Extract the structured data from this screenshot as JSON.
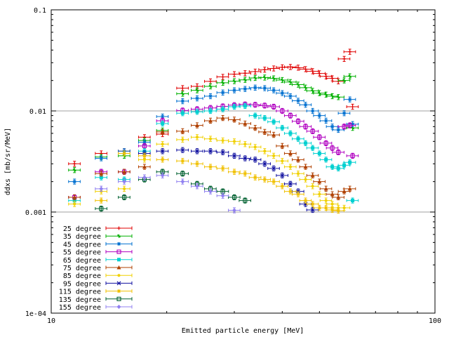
{
  "chart_data": {
    "type": "scatter",
    "title": "",
    "xlabel": "Emitted particle energy [MeV]",
    "ylabel": "ddxs [mb/sr/MeV]",
    "xscale": "log",
    "yscale": "log",
    "xlim": [
      10,
      100
    ],
    "ylim": [
      0.0001,
      0.1
    ],
    "x_ticks": [
      {
        "value": 10,
        "label": "10"
      },
      {
        "value": 100,
        "label": "100"
      }
    ],
    "y_ticks": [
      {
        "value": 0.1,
        "label": "0.1"
      },
      {
        "value": 0.01,
        "label": "0.01"
      },
      {
        "value": 0.001,
        "label": "0.001"
      },
      {
        "value": 0.0001,
        "label": "1e-04"
      }
    ],
    "grid": "horizontal",
    "legend_position": "bottom-left",
    "series": [
      {
        "name": "25 degree",
        "color": "#e00000",
        "marker": "plus",
        "points": [
          [
            11.5,
            0.003
          ],
          [
            13.5,
            0.0038
          ],
          [
            15.5,
            0.004
          ],
          [
            17.5,
            0.0055
          ],
          [
            19.5,
            0.0059
          ],
          [
            22,
            0.0168
          ],
          [
            24,
            0.0175
          ],
          [
            26,
            0.0196
          ],
          [
            28,
            0.0217
          ],
          [
            30,
            0.0231
          ],
          [
            32,
            0.0236
          ],
          [
            34,
            0.0245
          ],
          [
            36,
            0.0256
          ],
          [
            38,
            0.0263
          ],
          [
            40,
            0.027
          ],
          [
            42,
            0.0272
          ],
          [
            44,
            0.0268
          ],
          [
            46,
            0.0259
          ],
          [
            48,
            0.0247
          ],
          [
            50,
            0.0235
          ],
          [
            52,
            0.022
          ],
          [
            54,
            0.021
          ],
          [
            56,
            0.0196
          ],
          [
            58,
            0.0327
          ],
          [
            60,
            0.0385
          ],
          [
            61,
            0.011
          ]
        ]
      },
      {
        "name": "35 degree",
        "color": "#00b000",
        "marker": "cross",
        "points": [
          [
            11.5,
            0.0026
          ],
          [
            13.5,
            0.0035
          ],
          [
            15.5,
            0.0036
          ],
          [
            17.5,
            0.0051
          ],
          [
            19.5,
            0.0064
          ],
          [
            22,
            0.0148
          ],
          [
            24,
            0.016
          ],
          [
            26,
            0.0175
          ],
          [
            28,
            0.019
          ],
          [
            30,
            0.0197
          ],
          [
            32,
            0.0203
          ],
          [
            34,
            0.0212
          ],
          [
            36,
            0.0214
          ],
          [
            38,
            0.021
          ],
          [
            40,
            0.0202
          ],
          [
            42,
            0.0193
          ],
          [
            44,
            0.0182
          ],
          [
            46,
            0.017
          ],
          [
            48,
            0.0158
          ],
          [
            50,
            0.015
          ],
          [
            52,
            0.0145
          ],
          [
            54,
            0.014
          ],
          [
            56,
            0.0137
          ],
          [
            58,
            0.02
          ],
          [
            60,
            0.022
          ],
          [
            61,
            0.0068
          ]
        ]
      },
      {
        "name": "45 degree",
        "color": "#0070d0",
        "marker": "star",
        "points": [
          [
            11.5,
            0.002
          ],
          [
            13.5,
            0.0034
          ],
          [
            15.5,
            0.004
          ],
          [
            17.5,
            0.0049
          ],
          [
            19.5,
            0.0088
          ],
          [
            22,
            0.0125
          ],
          [
            24,
            0.0133
          ],
          [
            26,
            0.014
          ],
          [
            28,
            0.0152
          ],
          [
            30,
            0.016
          ],
          [
            32,
            0.0165
          ],
          [
            34,
            0.017
          ],
          [
            36,
            0.0168
          ],
          [
            38,
            0.016
          ],
          [
            40,
            0.015
          ],
          [
            42,
            0.014
          ],
          [
            44,
            0.0126
          ],
          [
            46,
            0.0115
          ],
          [
            48,
            0.01
          ],
          [
            50,
            0.009
          ],
          [
            52,
            0.008
          ],
          [
            54,
            0.007
          ],
          [
            56,
            0.0065
          ],
          [
            58,
            0.0095
          ],
          [
            60,
            0.013
          ],
          [
            61,
            0.0074
          ]
        ]
      },
      {
        "name": "55 degree",
        "color": "#b000c0",
        "marker": "square",
        "points": [
          [
            11.5,
            0.0014
          ],
          [
            13.5,
            0.0025
          ],
          [
            15.5,
            0.0025
          ],
          [
            17.5,
            0.0045
          ],
          [
            19.5,
            0.008
          ],
          [
            22,
            0.0101
          ],
          [
            24,
            0.0104
          ],
          [
            26,
            0.0107
          ],
          [
            28,
            0.0111
          ],
          [
            30,
            0.0114
          ],
          [
            32,
            0.0116
          ],
          [
            34,
            0.0115
          ],
          [
            36,
            0.0113
          ],
          [
            38,
            0.011
          ],
          [
            40,
            0.01
          ],
          [
            42,
            0.009
          ],
          [
            44,
            0.0079
          ],
          [
            46,
            0.007
          ],
          [
            48,
            0.0063
          ],
          [
            50,
            0.0055
          ],
          [
            52,
            0.0048
          ],
          [
            54,
            0.0043
          ],
          [
            56,
            0.0039
          ],
          [
            58,
            0.007
          ],
          [
            60,
            0.0072
          ],
          [
            61,
            0.0036
          ]
        ]
      },
      {
        "name": "65 degree",
        "color": "#00d0d0",
        "marker": "filled-square",
        "points": [
          [
            11.5,
            0.0013
          ],
          [
            13.5,
            0.0022
          ],
          [
            15.5,
            0.0021
          ],
          [
            17.5,
            0.004
          ],
          [
            19.5,
            0.0075
          ],
          [
            22,
            0.0095
          ],
          [
            24,
            0.0098
          ],
          [
            26,
            0.01
          ],
          [
            28,
            0.0104
          ],
          [
            30,
            0.011
          ],
          [
            32,
            0.0112
          ],
          [
            34,
            0.009
          ],
          [
            36,
            0.0085
          ],
          [
            38,
            0.0078
          ],
          [
            40,
            0.0068
          ],
          [
            42,
            0.006
          ],
          [
            44,
            0.0053
          ],
          [
            46,
            0.0048
          ],
          [
            48,
            0.0043
          ],
          [
            50,
            0.0038
          ],
          [
            52,
            0.0033
          ],
          [
            54,
            0.0028
          ],
          [
            56,
            0.0027
          ],
          [
            58,
            0.0029
          ],
          [
            60,
            0.0031
          ],
          [
            61,
            0.0013
          ]
        ]
      },
      {
        "name": "75 degree",
        "color": "#b04000",
        "marker": "filled-triangle",
        "points": [
          [
            11.5,
            0.0014
          ],
          [
            13.5,
            0.0024
          ],
          [
            15.5,
            0.0025
          ],
          [
            17.5,
            0.0028
          ],
          [
            19.5,
            0.0062
          ],
          [
            22,
            0.0063
          ],
          [
            24,
            0.0072
          ],
          [
            26,
            0.008
          ],
          [
            28,
            0.0085
          ],
          [
            30,
            0.0082
          ],
          [
            32,
            0.0075
          ],
          [
            34,
            0.0068
          ],
          [
            36,
            0.0062
          ],
          [
            38,
            0.0058
          ],
          [
            40,
            0.0045
          ],
          [
            42,
            0.0038
          ],
          [
            44,
            0.0033
          ],
          [
            46,
            0.0028
          ],
          [
            48,
            0.0023
          ],
          [
            50,
            0.002
          ],
          [
            52,
            0.0017
          ],
          [
            54,
            0.0015
          ],
          [
            56,
            0.0014
          ],
          [
            58,
            0.0016
          ],
          [
            60,
            0.0017
          ]
        ]
      },
      {
        "name": "85 degree",
        "color": "#f0d000",
        "marker": "dot",
        "points": [
          [
            11.5,
            0.0012
          ],
          [
            13.5,
            0.0016
          ],
          [
            15.5,
            0.0017
          ],
          [
            17.5,
            0.0033
          ],
          [
            19.5,
            0.0047
          ],
          [
            22,
            0.0052
          ],
          [
            24,
            0.0055
          ],
          [
            26,
            0.0053
          ],
          [
            28,
            0.0051
          ],
          [
            30,
            0.005
          ],
          [
            32,
            0.0047
          ],
          [
            34,
            0.0044
          ],
          [
            36,
            0.004
          ],
          [
            38,
            0.0036
          ],
          [
            40,
            0.0032
          ],
          [
            42,
            0.0028
          ],
          [
            44,
            0.0024
          ],
          [
            46,
            0.0021
          ],
          [
            48,
            0.0018
          ],
          [
            50,
            0.0015
          ],
          [
            52,
            0.0013
          ],
          [
            54,
            0.0012
          ],
          [
            56,
            0.0011
          ],
          [
            58,
            0.0011
          ]
        ]
      },
      {
        "name": "95 degree",
        "color": "#1010a0",
        "marker": "x",
        "points": [
          [
            17.5,
            0.0038
          ],
          [
            19.5,
            0.004
          ],
          [
            22,
            0.0041
          ],
          [
            24,
            0.004
          ],
          [
            26,
            0.004
          ],
          [
            28,
            0.0039
          ],
          [
            30,
            0.0036
          ],
          [
            32,
            0.0034
          ],
          [
            34,
            0.0033
          ],
          [
            36,
            0.003
          ],
          [
            38,
            0.0027
          ],
          [
            40,
            0.0023
          ],
          [
            42,
            0.0019
          ],
          [
            44,
            0.0016
          ],
          [
            46,
            0.0012
          ],
          [
            48,
            0.00105
          ]
        ]
      },
      {
        "name": "115 degree",
        "color": "#f0c000",
        "marker": "asterisk",
        "points": [
          [
            13.5,
            0.0013
          ],
          [
            15.5,
            0.0038
          ],
          [
            17.5,
            0.0036
          ],
          [
            19.5,
            0.0033
          ],
          [
            22,
            0.0032
          ],
          [
            24,
            0.003
          ],
          [
            26,
            0.0028
          ],
          [
            28,
            0.0027
          ],
          [
            30,
            0.0025
          ],
          [
            32,
            0.0024
          ],
          [
            34,
            0.0022
          ],
          [
            36,
            0.0021
          ],
          [
            38,
            0.002
          ],
          [
            40,
            0.0018
          ],
          [
            42,
            0.0016
          ],
          [
            44,
            0.0015
          ],
          [
            46,
            0.0013
          ],
          [
            48,
            0.0012
          ],
          [
            50,
            0.0011
          ],
          [
            52,
            0.0011
          ],
          [
            54,
            0.00105
          ],
          [
            56,
            0.00103
          ]
        ]
      },
      {
        "name": "135 degree",
        "color": "#006030",
        "marker": "square",
        "points": [
          [
            13.5,
            0.00108
          ],
          [
            15.5,
            0.0014
          ],
          [
            17.5,
            0.0021
          ],
          [
            19.5,
            0.0025
          ],
          [
            22,
            0.0024
          ],
          [
            24,
            0.0019
          ],
          [
            26,
            0.0017
          ],
          [
            28,
            0.0016
          ],
          [
            30,
            0.0014
          ],
          [
            32,
            0.0013
          ]
        ]
      },
      {
        "name": "155 degree",
        "color": "#9080f0",
        "marker": "diamond",
        "points": [
          [
            13.5,
            0.0017
          ],
          [
            15.5,
            0.002
          ],
          [
            17.5,
            0.0022
          ],
          [
            19.5,
            0.0023
          ],
          [
            22,
            0.002
          ],
          [
            24,
            0.0018
          ],
          [
            26,
            0.0016
          ],
          [
            28,
            0.00145
          ],
          [
            30,
            0.00104
          ]
        ]
      }
    ]
  }
}
